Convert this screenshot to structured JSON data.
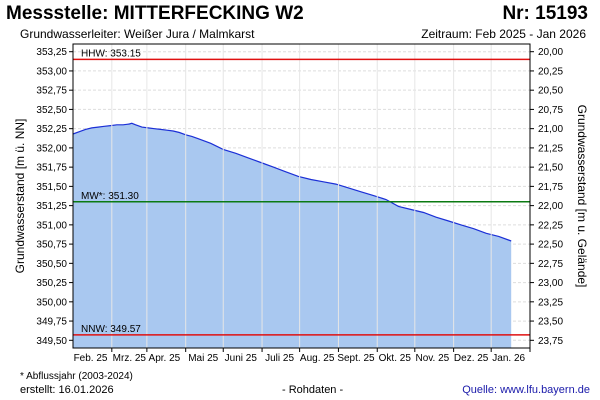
{
  "header": {
    "title": "Messstelle: MITTERFECKING  W2",
    "number": "Nr: 15193",
    "aquifer": "Grundwasserleiter:   Weißer Jura / Malmkarst",
    "period": "Zeitraum: Feb 2025 - Jan 2026"
  },
  "footer": {
    "footnote": "* Abflussjahr (2003-2024)",
    "created": "erstellt:  16.01.2026",
    "raw_data": "- Rohdaten -",
    "source_label": "Quelle:",
    "source_url": "www.lfu.bayern.de"
  },
  "colors": {
    "area_fill": "#a9c8f0",
    "line": "#1b2fd6",
    "hhw": "#e01010",
    "mw": "#0b7a12",
    "nnw": "#e01010",
    "grid": "#dddddd"
  },
  "chart_data": {
    "type": "area",
    "ylabel": "Grundwasserstand [m ü. NN]",
    "ylabel_right": "Grundwasserstand [m u. Gelände]",
    "ylim": [
      349.4,
      353.35
    ],
    "yticks": [
      "353,25",
      "353,00",
      "352,75",
      "352,50",
      "352,25",
      "352,00",
      "351,75",
      "351,50",
      "351,25",
      "351,00",
      "350,75",
      "350,50",
      "350,25",
      "350,00",
      "349,75",
      "349,50"
    ],
    "ytick_values": [
      353.25,
      353.0,
      352.75,
      352.5,
      352.25,
      352.0,
      351.75,
      351.5,
      351.25,
      351.0,
      350.75,
      350.5,
      350.25,
      350.0,
      349.75,
      349.5
    ],
    "right_yticks": [
      "20,00",
      "20,25",
      "20,50",
      "20,75",
      "21,00",
      "21,25",
      "21,50",
      "21,75",
      "22,00",
      "22,25",
      "22,50",
      "22,75",
      "23,00",
      "23,25",
      "23,50",
      "23,75"
    ],
    "x_labels": [
      "Feb. 25",
      "Mrz. 25",
      "Apr. 25",
      "Mai 25",
      "Juni 25",
      "Juli 25",
      "Aug. 25",
      "Sept. 25",
      "Okt. 25",
      "Nov. 25",
      "Dez. 25",
      "Jan. 26"
    ],
    "x_label_days": [
      14,
      45,
      73,
      104,
      134,
      165,
      195,
      226,
      257,
      287,
      318,
      348
    ],
    "x_gridline_days": [
      31,
      59,
      90,
      120,
      151,
      181,
      212,
      243,
      273,
      304,
      334,
      365
    ],
    "xlim_days": [
      0,
      365
    ],
    "grid": true,
    "reference_lines": [
      {
        "label": "HHW: 353.15",
        "value": 353.15,
        "color": "#e01010"
      },
      {
        "label": "MW*: 351.30",
        "value": 351.3,
        "color": "#0b7a12"
      },
      {
        "label": "NNW: 349.57",
        "value": 349.57,
        "color": "#e01010"
      }
    ],
    "series": [
      {
        "x": [
          0,
          5,
          10,
          15,
          20,
          25,
          30,
          35,
          40,
          45,
          47,
          50,
          55,
          60,
          65,
          70,
          75,
          80,
          85,
          90,
          95,
          100,
          110,
          120,
          130,
          140,
          150,
          160,
          170,
          180,
          190,
          200,
          210,
          220,
          230,
          240,
          250,
          260,
          270,
          280,
          290,
          300,
          310,
          320,
          330,
          340,
          350
        ],
        "y": [
          352.18,
          352.21,
          352.24,
          352.26,
          352.27,
          352.28,
          352.29,
          352.3,
          352.3,
          352.31,
          352.32,
          352.3,
          352.27,
          352.26,
          352.25,
          352.24,
          352.23,
          352.22,
          352.2,
          352.17,
          352.15,
          352.12,
          352.06,
          351.98,
          351.93,
          351.87,
          351.81,
          351.75,
          351.69,
          351.63,
          351.59,
          351.56,
          351.53,
          351.48,
          351.43,
          351.38,
          351.33,
          351.24,
          351.2,
          351.16,
          351.1,
          351.05,
          351.0,
          350.95,
          350.89,
          350.85,
          350.79
        ]
      }
    ]
  }
}
